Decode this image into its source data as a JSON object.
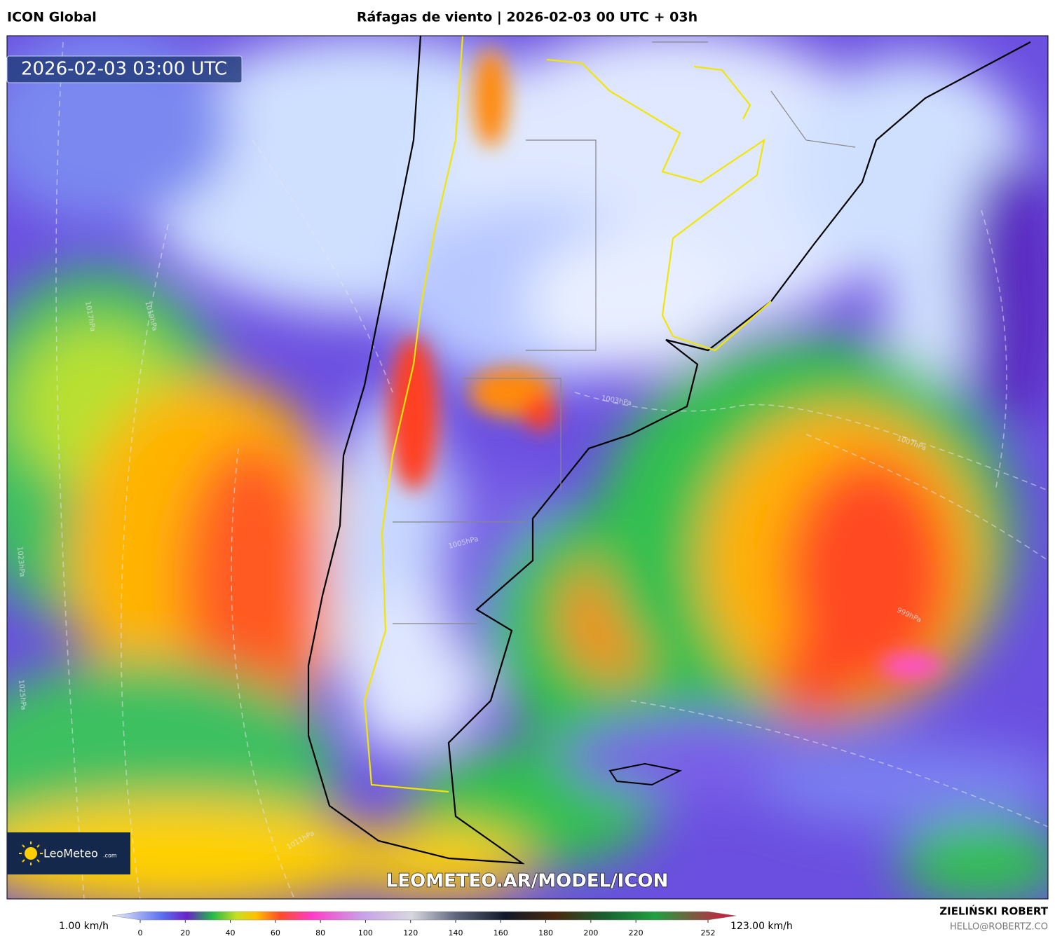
{
  "header": {
    "model": "ICON Global",
    "title": "Ráfagas de viento | 2026-02-03 00 UTC + 03h"
  },
  "map": {
    "timestamp": "2026-02-03 03:00 UTC",
    "watermark": "LEOMETEO.AR/MODEL/ICON",
    "logo": {
      "name": "LeoMeteo",
      "suffix": ".com"
    },
    "isobar_labels": [
      "1017hPa",
      "1019hPa",
      "1023hPa",
      "1025hPa",
      "1011hPa",
      "1003hPa",
      "1005hPa",
      "1007hPa",
      "999hPa"
    ]
  },
  "colorbar": {
    "min_label": "1.00 km/h",
    "max_label": "123.00 km/h",
    "ticks": [
      0,
      20,
      40,
      60,
      80,
      100,
      120,
      140,
      160,
      180,
      200,
      220,
      252
    ]
  },
  "footer": {
    "author": "ZIELIŃSKI ROBERT",
    "email": "HELLO@ROBERTZ.CO"
  }
}
